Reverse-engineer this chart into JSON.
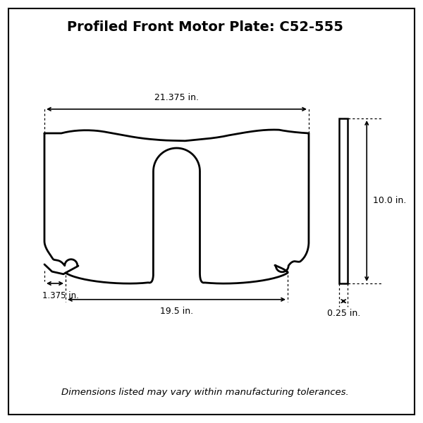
{
  "title": "Profiled Front Motor Plate: C52-555",
  "title_fontsize": 14,
  "dim_21375_label": "21.375 in.",
  "dim_195_label": "19.5 in.",
  "dim_1375_label": "1.375 in.",
  "dim_10_label": "10.0 in.",
  "dim_025_label": "0.25 in.",
  "footer": "Dimensions listed may vary within manufacturing tolerances.",
  "footer_fontsize": 9.5,
  "line_color": "#000000",
  "bg_color": "#ffffff"
}
